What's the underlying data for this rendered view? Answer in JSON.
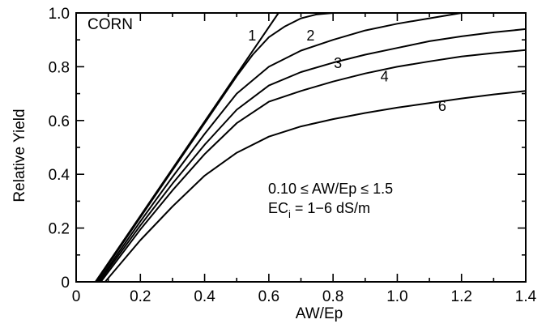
{
  "chart_data": {
    "type": "line",
    "title": "CORN",
    "xlabel": "AW/Ep",
    "ylabel": "Relative Yield",
    "xlim": [
      0,
      1.4
    ],
    "ylim": [
      0,
      1.0
    ],
    "x_ticks": [
      "0",
      "0.2",
      "0.4",
      "0.6",
      "0.8",
      "1.0",
      "1.2",
      "1.4"
    ],
    "y_ticks": [
      "0",
      "0.2",
      "0.4",
      "0.6",
      "0.8",
      "1.0"
    ],
    "grid": false,
    "series": [
      {
        "name": "",
        "points": [
          [
            0.06,
            0
          ],
          [
            0.63,
            1.0
          ],
          [
            1.4,
            1.0
          ]
        ]
      },
      {
        "name": "1",
        "points": [
          [
            0.063,
            0
          ],
          [
            0.2,
            0.24
          ],
          [
            0.3,
            0.415
          ],
          [
            0.4,
            0.59
          ],
          [
            0.5,
            0.765
          ],
          [
            0.55,
            0.845
          ],
          [
            0.6,
            0.91
          ],
          [
            0.65,
            0.95
          ],
          [
            0.7,
            0.98
          ],
          [
            0.75,
            0.995
          ],
          [
            0.8,
            1.0
          ],
          [
            1.4,
            1.0
          ]
        ]
      },
      {
        "name": "2",
        "points": [
          [
            0.068,
            0
          ],
          [
            0.2,
            0.225
          ],
          [
            0.3,
            0.39
          ],
          [
            0.4,
            0.55
          ],
          [
            0.5,
            0.7
          ],
          [
            0.6,
            0.8
          ],
          [
            0.7,
            0.86
          ],
          [
            0.8,
            0.9
          ],
          [
            0.9,
            0.935
          ],
          [
            1.0,
            0.96
          ],
          [
            1.1,
            0.98
          ],
          [
            1.2,
            1.0
          ],
          [
            1.4,
            1.0
          ]
        ]
      },
      {
        "name": "3",
        "points": [
          [
            0.072,
            0
          ],
          [
            0.2,
            0.21
          ],
          [
            0.3,
            0.365
          ],
          [
            0.4,
            0.51
          ],
          [
            0.5,
            0.64
          ],
          [
            0.6,
            0.73
          ],
          [
            0.7,
            0.78
          ],
          [
            0.8,
            0.815
          ],
          [
            0.9,
            0.845
          ],
          [
            1.0,
            0.87
          ],
          [
            1.1,
            0.895
          ],
          [
            1.2,
            0.913
          ],
          [
            1.3,
            0.928
          ],
          [
            1.4,
            0.94
          ]
        ]
      },
      {
        "name": "4",
        "points": [
          [
            0.077,
            0
          ],
          [
            0.2,
            0.195
          ],
          [
            0.3,
            0.34
          ],
          [
            0.4,
            0.475
          ],
          [
            0.5,
            0.59
          ],
          [
            0.6,
            0.67
          ],
          [
            0.7,
            0.71
          ],
          [
            0.8,
            0.745
          ],
          [
            0.9,
            0.775
          ],
          [
            1.0,
            0.8
          ],
          [
            1.1,
            0.82
          ],
          [
            1.2,
            0.838
          ],
          [
            1.3,
            0.851
          ],
          [
            1.4,
            0.862
          ]
        ]
      },
      {
        "name": "6",
        "points": [
          [
            0.09,
            0
          ],
          [
            0.2,
            0.155
          ],
          [
            0.3,
            0.28
          ],
          [
            0.4,
            0.395
          ],
          [
            0.5,
            0.48
          ],
          [
            0.6,
            0.54
          ],
          [
            0.7,
            0.578
          ],
          [
            0.8,
            0.605
          ],
          [
            0.9,
            0.628
          ],
          [
            1.0,
            0.648
          ],
          [
            1.1,
            0.665
          ],
          [
            1.2,
            0.682
          ],
          [
            1.3,
            0.697
          ],
          [
            1.4,
            0.71
          ]
        ]
      }
    ],
    "curve_labels": [
      {
        "text": "1",
        "x": 0.548,
        "y": 0.897
      },
      {
        "text": "2",
        "x": 0.73,
        "y": 0.897
      },
      {
        "text": "3",
        "x": 0.815,
        "y": 0.795
      },
      {
        "text": "4",
        "x": 0.96,
        "y": 0.745
      },
      {
        "text": "6",
        "x": 1.14,
        "y": 0.635
      }
    ],
    "annotations": {
      "line1": "0.10 ≤ AW/Ep ≤ 1.5",
      "line2_prefix": "EC",
      "line2_sub": "i",
      "line2_suffix": " = 1−6 dS/m"
    }
  }
}
